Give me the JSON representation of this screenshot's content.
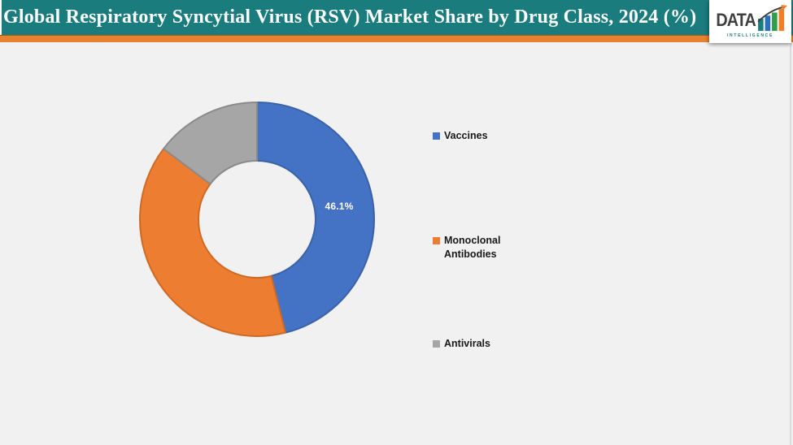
{
  "header": {
    "title": "Global Respiratory Syncytial Virus (RSV) Market Share by Drug Class, 2024 (%)",
    "background_color": "#1B7C7E",
    "accent_bar_color": "#E8812F"
  },
  "logo": {
    "word": "DATA",
    "subtitle": "INTELLIGENCE",
    "word_color": "#3F3F3F",
    "subtitle_color": "#1B7E7E",
    "bar_colors": [
      "#1B7E7E",
      "#2C6FBB",
      "#2E9E49",
      "#F07E26"
    ],
    "arrow_color": "#3F3F3F",
    "arrowhead_color": "#F07E26"
  },
  "chart_data": {
    "type": "pie",
    "subtype": "donut",
    "title": "Global Respiratory Syncytial Virus (RSV) Market Share by Drug Class, 2024 (%)",
    "categories": [
      "Vaccines",
      "Monoclonal Antibodies",
      "Antivirals"
    ],
    "values": [
      46.1,
      39.2,
      14.7
    ],
    "unit": "%",
    "colors": [
      "#4472C4",
      "#ED7D31",
      "#A6A6A6"
    ],
    "border_colors": [
      "#3A62A8",
      "#CF6A24",
      "#8A8A8A"
    ],
    "data_labels": [
      "46.1%",
      "",
      ""
    ],
    "start_angle_deg": 0,
    "direction": "clockwise",
    "inner_radius_ratio": 0.5,
    "legend_position": "right",
    "background_color": "#F1F1F1"
  },
  "legend": {
    "items": [
      {
        "label": "Vaccines",
        "color": "#4472C4"
      },
      {
        "label": "Monoclonal Antibodies",
        "color": "#ED7D31"
      },
      {
        "label": "Antivirals",
        "color": "#A6A6A6"
      }
    ]
  }
}
